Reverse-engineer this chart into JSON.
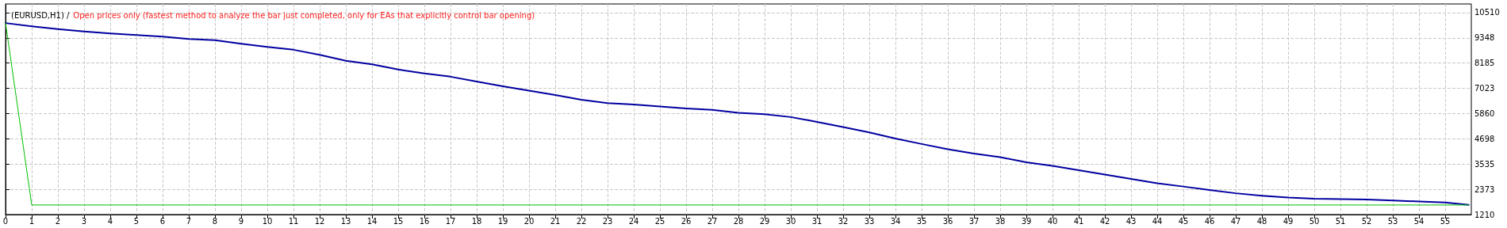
{
  "chart_data": {
    "type": "line",
    "title": "(EURUSD,H1) /",
    "subtitle": "Open prices only (fastest method to analyze the bar just completed, only for EAs that explicitly control bar opening)",
    "xlim": [
      0,
      56
    ],
    "xticks": [
      0,
      1,
      2,
      3,
      4,
      5,
      6,
      7,
      8,
      9,
      10,
      11,
      12,
      13,
      14,
      15,
      16,
      17,
      18,
      19,
      20,
      21,
      22,
      23,
      24,
      25,
      26,
      27,
      28,
      29,
      30,
      31,
      32,
      33,
      34,
      35,
      36,
      37,
      38,
      39,
      40,
      41,
      42,
      43,
      44,
      45,
      46,
      47,
      48,
      49,
      50,
      51,
      52,
      53,
      54,
      55
    ],
    "ylim": [
      1210,
      10910
    ],
    "yticks": [
      1210,
      2373,
      3535,
      4698,
      5860,
      7023,
      8185,
      9348,
      10510
    ],
    "grid": true,
    "marker": "none",
    "line_style": "solid",
    "series": [
      {
        "color": "#0000a0",
        "x": [
          0,
          1,
          2,
          3,
          4,
          5,
          6,
          7,
          8,
          9,
          10,
          11,
          12,
          13,
          14,
          15,
          16,
          17,
          18,
          19,
          20,
          21,
          22,
          23,
          24,
          25,
          26,
          27,
          28,
          29,
          30,
          31,
          32,
          33,
          34,
          35,
          36,
          37,
          38,
          39,
          40,
          41,
          42,
          43,
          44,
          45,
          46,
          47,
          48,
          49,
          50,
          51,
          52,
          53,
          54,
          55,
          55.9
        ],
        "values": [
          10030,
          9880,
          9750,
          9640,
          9550,
          9480,
          9410,
          9300,
          9240,
          9080,
          8930,
          8800,
          8570,
          8290,
          8130,
          7890,
          7710,
          7560,
          7340,
          7120,
          6920,
          6720,
          6500,
          6340,
          6280,
          6190,
          6100,
          6030,
          5900,
          5830,
          5700,
          5480,
          5240,
          4990,
          4710,
          4460,
          4220,
          4020,
          3850,
          3620,
          3450,
          3250,
          3050,
          2850,
          2650,
          2500,
          2340,
          2190,
          2080,
          1990,
          1940,
          1920,
          1900,
          1860,
          1810,
          1770,
          1660
        ]
      },
      {
        "color": "#00c000",
        "x": [
          0,
          1,
          55.9
        ],
        "values": [
          10030,
          1650,
          1650
        ]
      }
    ]
  }
}
